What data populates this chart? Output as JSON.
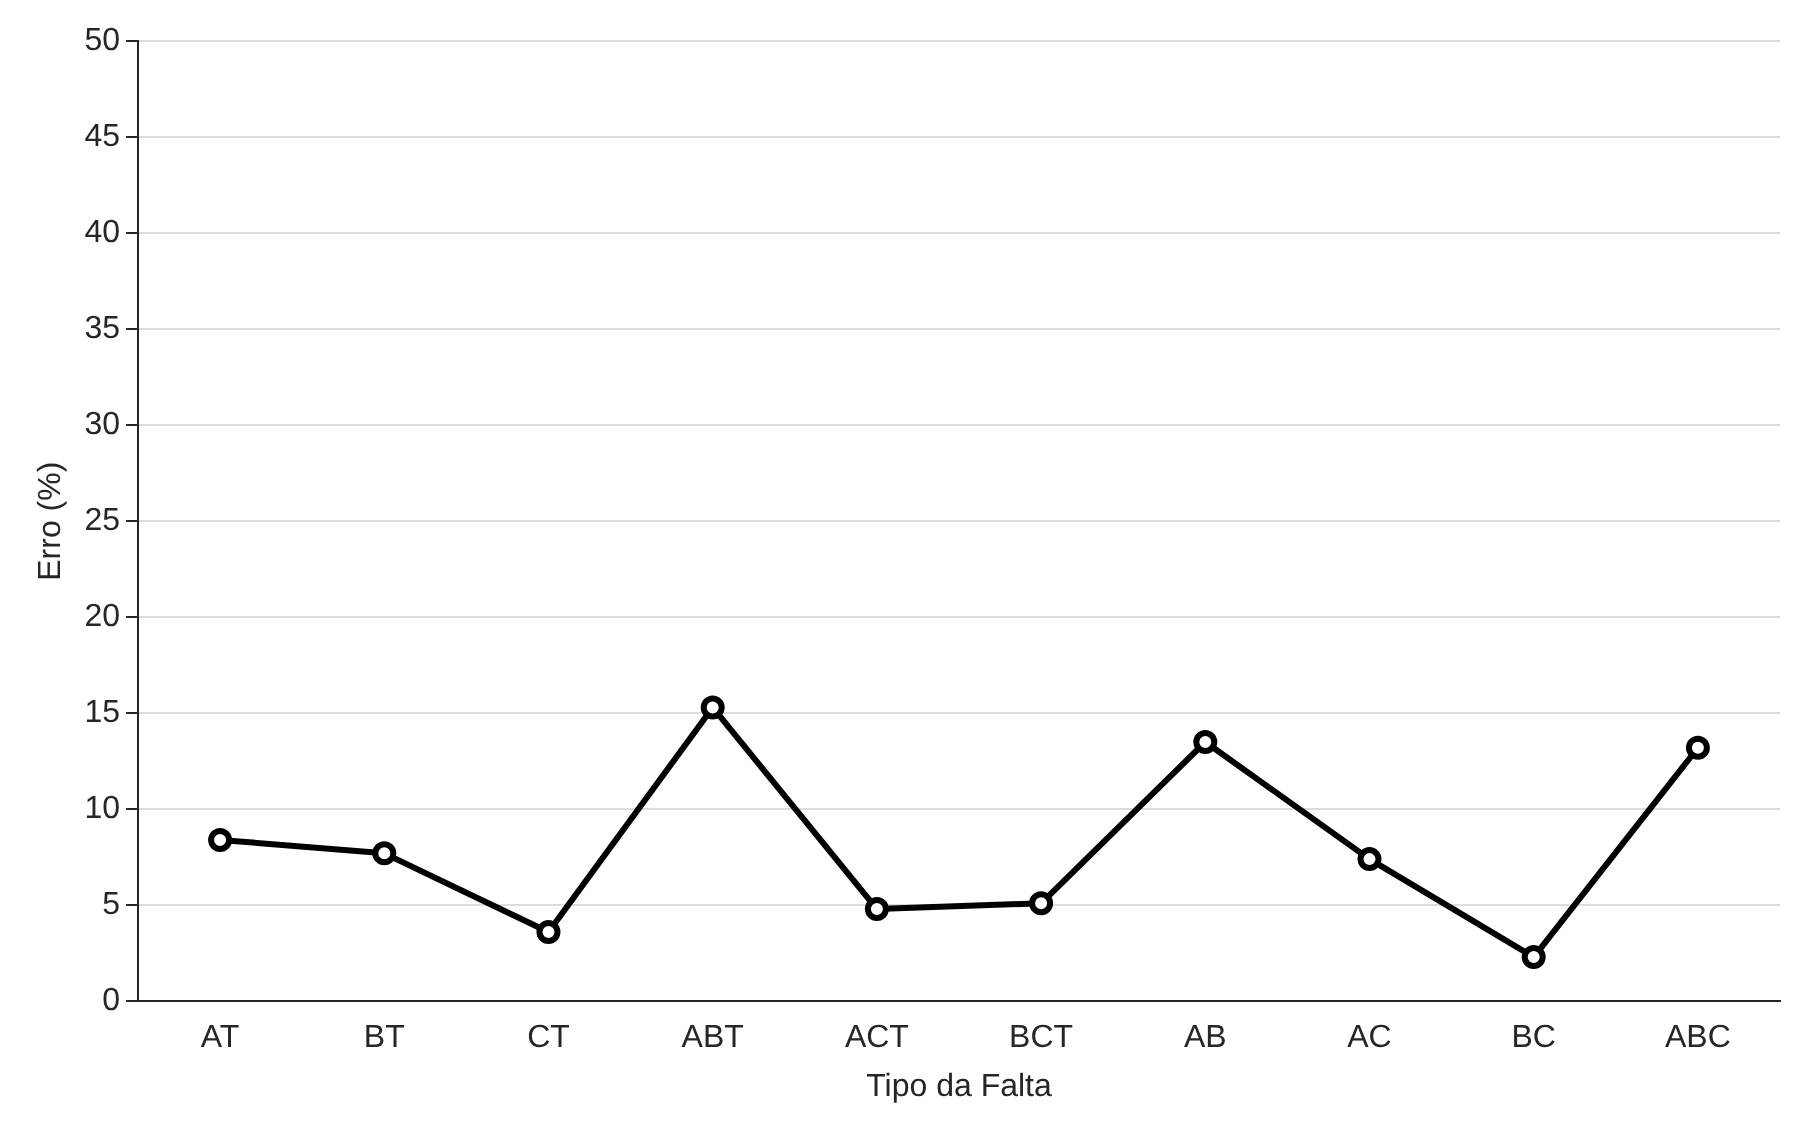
{
  "chart_data": {
    "type": "line",
    "xlabel": "Tipo da Falta",
    "ylabel": "Erro (%)",
    "categories": [
      "AT",
      "BT",
      "CT",
      "ABT",
      "ACT",
      "BCT",
      "AB",
      "AC",
      "BC",
      "ABC"
    ],
    "series": [
      {
        "color": "#000000",
        "values": [
          8.4,
          7.7,
          3.6,
          15.3,
          4.8,
          5.1,
          13.5,
          7.4,
          2.3,
          13.2
        ]
      }
    ],
    "ylim": [
      0,
      50
    ],
    "yticks": [
      0,
      5,
      10,
      15,
      20,
      25,
      30,
      35,
      40,
      45,
      50
    ],
    "grid": "y",
    "legend": false,
    "marker": "circle",
    "line_style": "solid"
  }
}
